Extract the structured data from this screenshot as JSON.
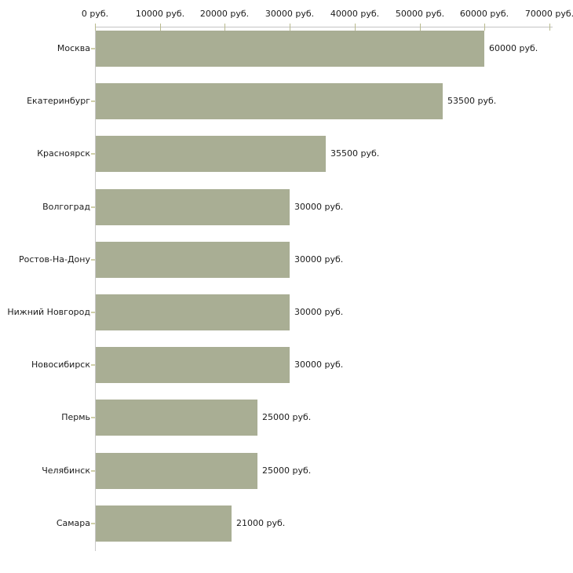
{
  "chart_data": {
    "type": "bar",
    "orientation": "horizontal",
    "title": "",
    "xlabel": "",
    "ylabel": "",
    "unit": "руб.",
    "categories": [
      "Москва",
      "Екатеринбург",
      "Красноярск",
      "Волгоград",
      "Ростов-На-Дону",
      "Нижний Новгород",
      "Новосибирск",
      "Пермь",
      "Челябинск",
      "Самара"
    ],
    "values": [
      60000,
      53500,
      35500,
      30000,
      30000,
      30000,
      30000,
      25000,
      25000,
      21000
    ],
    "value_labels": [
      "60000 руб.",
      "53500 руб.",
      "35500 руб.",
      "30000 руб.",
      "30000 руб.",
      "30000 руб.",
      "30000 руб.",
      "25000 руб.",
      "25000 руб.",
      "21000 руб."
    ],
    "x_ticks": [
      0,
      10000,
      20000,
      30000,
      40000,
      50000,
      60000,
      70000
    ],
    "x_tick_labels": [
      "0 руб.",
      "10000 руб.",
      "20000 руб.",
      "30000 руб.",
      "40000 руб.",
      "50000 руб.",
      "60000 руб.",
      "70000 руб."
    ],
    "xlim": [
      0,
      70000
    ],
    "grid": false,
    "legend": false,
    "colors": {
      "bar": "#a9ae94",
      "axis_line": "#c3c3c3",
      "axis_tick": "#b9ba8e",
      "category_tick": "#cfcfa8",
      "text": "#1c1c1c",
      "background": "#ffffff"
    }
  }
}
